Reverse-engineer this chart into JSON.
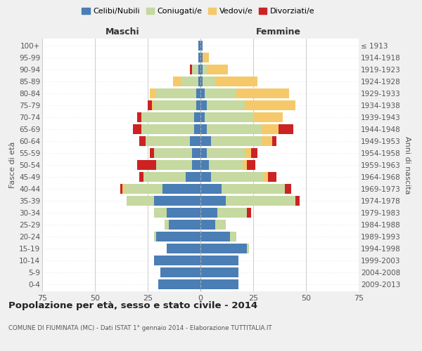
{
  "age_groups": [
    "0-4",
    "5-9",
    "10-14",
    "15-19",
    "20-24",
    "25-29",
    "30-34",
    "35-39",
    "40-44",
    "45-49",
    "50-54",
    "55-59",
    "60-64",
    "65-69",
    "70-74",
    "75-79",
    "80-84",
    "85-89",
    "90-94",
    "95-99",
    "100+"
  ],
  "birth_years": [
    "2009-2013",
    "2004-2008",
    "1999-2003",
    "1994-1998",
    "1989-1993",
    "1984-1988",
    "1979-1983",
    "1974-1978",
    "1969-1973",
    "1964-1968",
    "1959-1963",
    "1954-1958",
    "1949-1953",
    "1944-1948",
    "1939-1943",
    "1934-1938",
    "1929-1933",
    "1924-1928",
    "1919-1923",
    "1914-1918",
    "≤ 1913"
  ],
  "colors": {
    "celibi": "#4a7eb5",
    "coniugati": "#c5d9a0",
    "vedovi": "#f5c96a",
    "divorziati": "#cc2222"
  },
  "maschi": {
    "celibi": [
      20,
      19,
      22,
      16,
      21,
      15,
      16,
      22,
      18,
      7,
      4,
      4,
      5,
      3,
      3,
      2,
      2,
      1,
      1,
      1,
      1
    ],
    "coniugati": [
      0,
      0,
      0,
      0,
      1,
      2,
      6,
      13,
      18,
      20,
      17,
      18,
      21,
      25,
      25,
      20,
      19,
      8,
      3,
      0,
      0
    ],
    "vedovi": [
      0,
      0,
      0,
      0,
      0,
      0,
      0,
      0,
      1,
      0,
      0,
      0,
      0,
      0,
      0,
      1,
      3,
      4,
      0,
      0,
      0
    ],
    "divorziati": [
      0,
      0,
      0,
      0,
      0,
      0,
      0,
      0,
      1,
      2,
      9,
      2,
      3,
      4,
      2,
      2,
      0,
      0,
      1,
      0,
      0
    ]
  },
  "femmine": {
    "celibi": [
      18,
      18,
      18,
      22,
      14,
      7,
      8,
      12,
      10,
      5,
      4,
      3,
      5,
      3,
      2,
      3,
      2,
      1,
      1,
      1,
      1
    ],
    "coniugati": [
      0,
      0,
      0,
      1,
      3,
      5,
      14,
      33,
      30,
      25,
      16,
      18,
      24,
      26,
      23,
      18,
      15,
      6,
      2,
      0,
      0
    ],
    "vedovi": [
      0,
      0,
      0,
      0,
      0,
      0,
      0,
      0,
      0,
      2,
      2,
      3,
      5,
      8,
      14,
      24,
      25,
      20,
      10,
      3,
      0
    ],
    "divorziati": [
      0,
      0,
      0,
      0,
      0,
      0,
      2,
      2,
      3,
      4,
      4,
      3,
      2,
      7,
      0,
      0,
      0,
      0,
      0,
      0,
      0
    ]
  },
  "title": "Popolazione per età, sesso e stato civile - 2014",
  "subtitle": "COMUNE DI FIUMINATA (MC) - Dati ISTAT 1° gennaio 2014 - Elaborazione TUTTITALIA.IT",
  "xlabel_left": "Maschi",
  "xlabel_right": "Femmine",
  "ylabel_left": "Fasce di età",
  "ylabel_right": "Anni di nascita",
  "xlim": 75,
  "legend_labels": [
    "Celibi/Nubili",
    "Coniugati/e",
    "Vedovi/e",
    "Divorziati/e"
  ],
  "bg_color": "#f0f0f0",
  "plot_bg_color": "#ffffff",
  "bar_height": 0.82,
  "grid_color": "#cccccc"
}
